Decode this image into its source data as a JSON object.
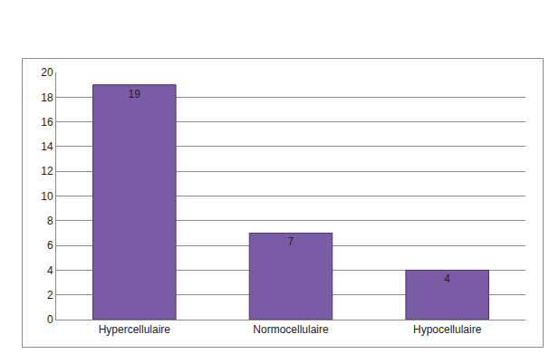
{
  "chart_data": {
    "type": "bar",
    "categories": [
      "Hypercellulaire",
      "Normocellulaire",
      "Hypocellulaire"
    ],
    "values": [
      19,
      7,
      4
    ],
    "color": "#7b5aa6",
    "ylim": [
      0,
      20
    ],
    "yticks": [
      0,
      2,
      4,
      6,
      8,
      10,
      12,
      14,
      16,
      18,
      20
    ],
    "grid": true,
    "data_labels": true
  }
}
